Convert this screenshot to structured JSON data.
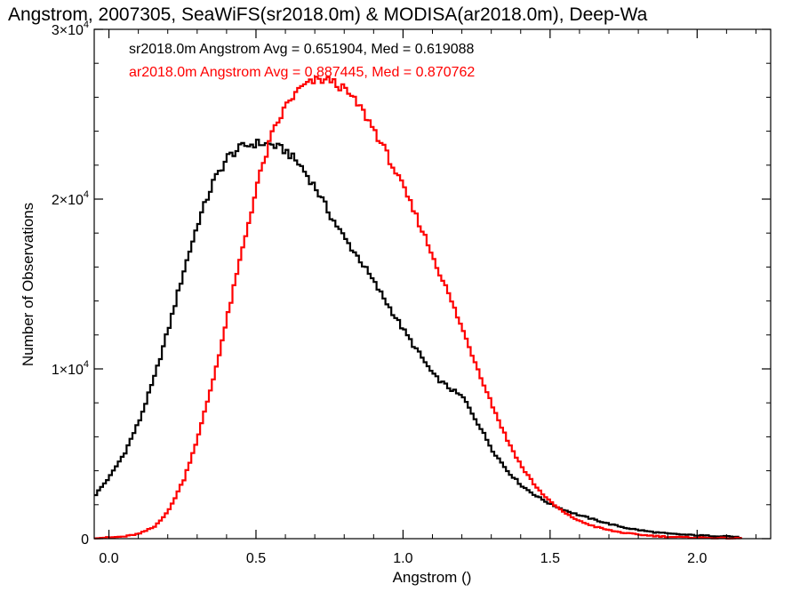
{
  "chart_data": {
    "type": "line",
    "title": "Angstrom, 2007305, SeaWiFS(sr2018.0m) & MODISA(ar2018.0m), Deep-Wa",
    "xlabel": "Angstrom ()",
    "ylabel": "Number of Observations",
    "xlim": [
      -0.05,
      2.25
    ],
    "ylim": [
      0,
      30000
    ],
    "x_ticks": [
      {
        "value": 0.0,
        "label": "0.0"
      },
      {
        "value": 0.5,
        "label": "0.5"
      },
      {
        "value": 1.0,
        "label": "1.0"
      },
      {
        "value": 1.5,
        "label": "1.5"
      },
      {
        "value": 2.0,
        "label": "2.0"
      }
    ],
    "y_ticks": [
      {
        "value": 0,
        "mant": "0",
        "times": "",
        "base": "",
        "exp": ""
      },
      {
        "value": 10000,
        "mant": "1",
        "times": "×",
        "base": "10",
        "exp": "4"
      },
      {
        "value": 20000,
        "mant": "2",
        "times": "×",
        "base": "10",
        "exp": "4"
      },
      {
        "value": 30000,
        "mant": "3",
        "times": "×",
        "base": "10",
        "exp": "4"
      }
    ],
    "series": [
      {
        "label": "sr2018.0m Angstrom Avg = 0.651904, Med = 0.619088",
        "color": "#000000",
        "x": [
          -0.05,
          0.0,
          0.05,
          0.1,
          0.15,
          0.2,
          0.25,
          0.3,
          0.35,
          0.4,
          0.45,
          0.5,
          0.55,
          0.6,
          0.65,
          0.7,
          0.75,
          0.8,
          0.85,
          0.9,
          0.95,
          1.0,
          1.05,
          1.1,
          1.15,
          1.2,
          1.25,
          1.3,
          1.35,
          1.4,
          1.45,
          1.5,
          1.55,
          1.6,
          1.65,
          1.7,
          1.75,
          1.8,
          1.85,
          1.9,
          1.95,
          2.0,
          2.05,
          2.1,
          2.15
        ],
        "y": [
          2600,
          3700,
          5100,
          7000,
          9500,
          12500,
          15800,
          18700,
          21000,
          22500,
          23100,
          23300,
          23200,
          22800,
          21900,
          20600,
          19000,
          17600,
          16400,
          15000,
          13600,
          12200,
          10900,
          9600,
          8900,
          8300,
          6800,
          5200,
          4000,
          3100,
          2500,
          2000,
          1650,
          1350,
          1100,
          850,
          650,
          500,
          380,
          290,
          240,
          190,
          160,
          150,
          50
        ]
      },
      {
        "label": "ar2018.0m Angstrom Avg = 0.887445, Med = 0.870762",
        "color": "#ff0000",
        "x": [
          -0.05,
          0.0,
          0.05,
          0.1,
          0.15,
          0.2,
          0.25,
          0.3,
          0.35,
          0.4,
          0.45,
          0.5,
          0.55,
          0.6,
          0.65,
          0.7,
          0.75,
          0.8,
          0.85,
          0.9,
          0.95,
          1.0,
          1.05,
          1.1,
          1.15,
          1.2,
          1.25,
          1.3,
          1.35,
          1.4,
          1.45,
          1.5,
          1.55,
          1.6,
          1.65,
          1.7,
          1.75,
          1.8,
          1.85,
          1.9,
          1.95,
          2.0,
          2.05,
          2.1,
          2.15
        ],
        "y": [
          50,
          70,
          130,
          300,
          700,
          1700,
          3500,
          6100,
          9400,
          13200,
          17100,
          20900,
          23800,
          25600,
          26600,
          27000,
          27000,
          26400,
          25400,
          24000,
          22300,
          20500,
          18600,
          16500,
          14400,
          12200,
          10000,
          7800,
          5800,
          4200,
          3000,
          2100,
          1450,
          1000,
          700,
          480,
          330,
          230,
          160,
          110,
          80,
          60,
          45,
          30,
          20
        ]
      }
    ]
  }
}
